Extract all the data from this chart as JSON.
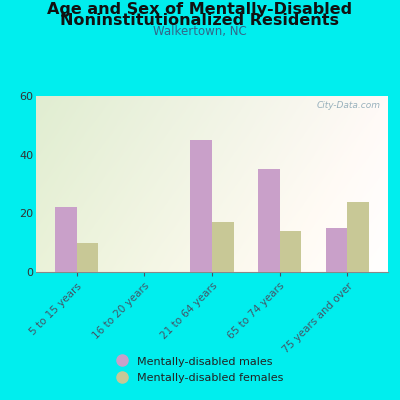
{
  "title_line1": "Age and Sex of Mentally-Disabled",
  "title_line2": "Noninstitutionalized Residents",
  "subtitle": "Walkertown, NC",
  "categories": [
    "5 to 15 years",
    "16 to 20 years",
    "21 to 64 years",
    "65 to 74 years",
    "75 years and over"
  ],
  "males": [
    22,
    0,
    45,
    35,
    15
  ],
  "females": [
    10,
    0,
    17,
    14,
    24
  ],
  "male_color": "#c9a0c9",
  "female_color": "#c8c896",
  "bg_color": "#00eeee",
  "ylim": [
    0,
    60
  ],
  "yticks": [
    0,
    20,
    40,
    60
  ],
  "bar_width": 0.32,
  "legend_male": "Mentally-disabled males",
  "legend_female": "Mentally-disabled females",
  "watermark": "City-Data.com",
  "title_fontsize": 11.5,
  "subtitle_fontsize": 8.5,
  "tick_fontsize": 8,
  "xlabel_fontsize": 7.5
}
